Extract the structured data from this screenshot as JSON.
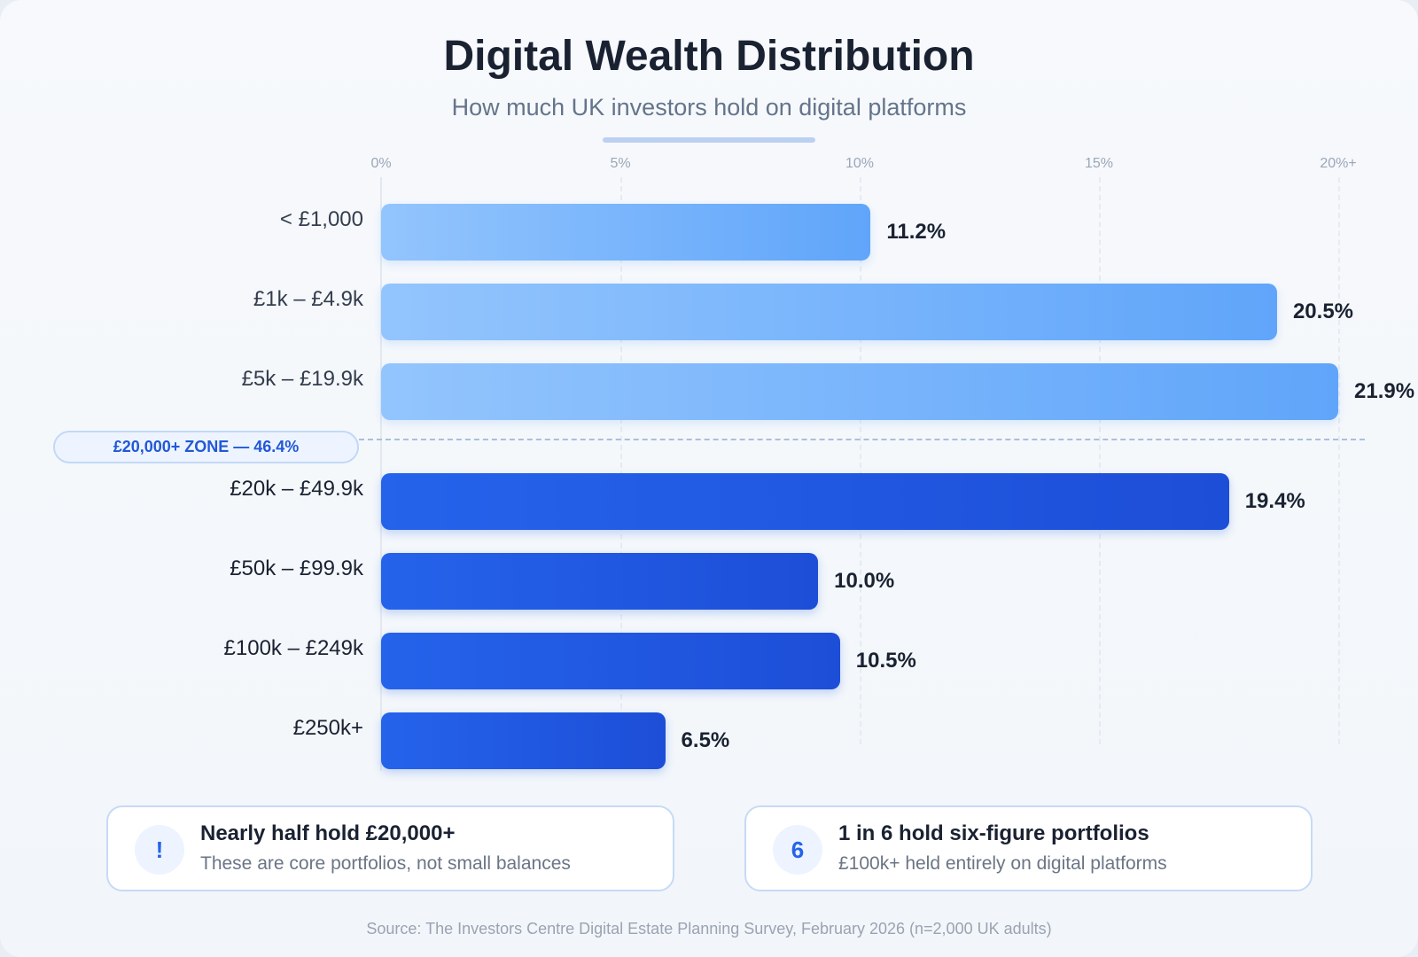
{
  "chart_data": {
    "type": "bar",
    "orientation": "horizontal",
    "title": "Digital Wealth Distribution",
    "subtitle": "How much UK investors hold on digital platforms",
    "categories": [
      "< £1,000",
      "£1k – £4.9k",
      "£5k – £19.9k",
      "£20k – £49.9k",
      "£50k – £99.9k",
      "£100k – £249k",
      "£250k+"
    ],
    "values": [
      11.2,
      20.5,
      21.9,
      19.4,
      10.0,
      10.5,
      6.5
    ],
    "value_labels": [
      "11.2%",
      "20.5%",
      "21.9%",
      "19.4%",
      "10.0%",
      "10.5%",
      "6.5%"
    ],
    "x_ticks": [
      "0%",
      "5%",
      "10%",
      "15%",
      "20%+"
    ],
    "xlim": [
      0,
      21.9
    ],
    "grid": true,
    "legend": "none",
    "colors": {
      "below_20k": "#60a5fa",
      "above_20k": "#1d4ed8"
    },
    "zone_annotation": "£20,000+ ZONE — 46.4%"
  },
  "callouts": [
    {
      "icon": "exclamation-icon",
      "icon_text": "!",
      "heading": "Nearly half hold £20,000+",
      "text": "These are core portfolios, not small balances"
    },
    {
      "icon": "number-six-icon",
      "icon_text": "6",
      "heading": "1 in 6 hold six-figure portfolios",
      "text": "£100k+ held entirely on digital platforms"
    }
  ],
  "source": "Source: The Investors Centre Digital Estate Planning Survey, February 2026 (n=2,000 UK adults)"
}
